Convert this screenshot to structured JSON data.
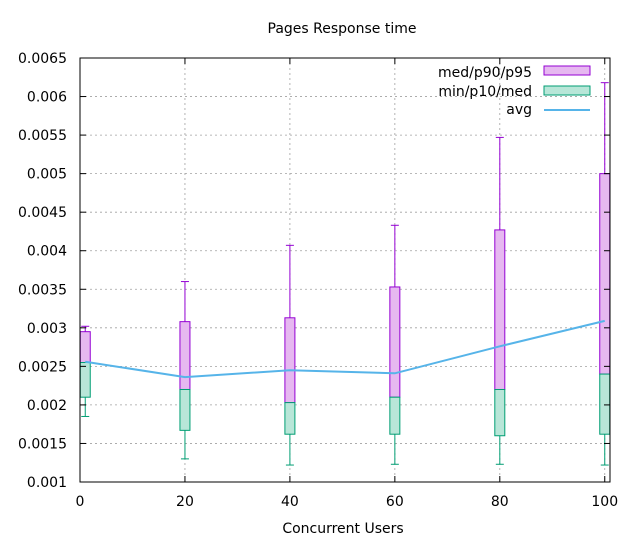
{
  "chart_data": {
    "type": "candlestick-box",
    "title": "Pages Response time",
    "xlabel": "Concurrent Users",
    "ylabel": "",
    "xlim": [
      0,
      101
    ],
    "ylim": [
      0.001,
      0.0065
    ],
    "x_ticks": [
      "0",
      "20",
      "40",
      "60",
      "80",
      "100"
    ],
    "y_ticks": [
      "0.001",
      "0.0015",
      "0.002",
      "0.0025",
      "0.003",
      "0.0035",
      "0.004",
      "0.0045",
      "0.005",
      "0.0055",
      "0.006",
      "0.0065"
    ],
    "grid": true,
    "legend_position": "top-right",
    "legend": [
      "med/p90/p95",
      "min/p10/med",
      "avg"
    ],
    "colors": {
      "upper_fill": "#e6b8f0",
      "upper_stroke": "#9400d3",
      "lower_fill": "#b8e6d8",
      "lower_stroke": "#009e73",
      "avg_line": "#56b4e9"
    },
    "x": [
      1,
      20,
      40,
      60,
      80,
      100
    ],
    "series": [
      {
        "name": "med/p90/p95",
        "med": [
          0.00255,
          0.0022,
          0.00203,
          0.0021,
          0.0022,
          0.0024
        ],
        "p90": [
          0.00295,
          0.00308,
          0.00313,
          0.00353,
          0.00427,
          0.005
        ],
        "p95": [
          0.00302,
          0.0036,
          0.00407,
          0.00433,
          0.00547,
          0.00618
        ]
      },
      {
        "name": "min/p10/med",
        "min": [
          0.00185,
          0.0013,
          0.00122,
          0.00123,
          0.00123,
          0.00122
        ],
        "p10": [
          0.0021,
          0.00167,
          0.00162,
          0.00162,
          0.0016,
          0.00162
        ],
        "med": [
          0.00255,
          0.0022,
          0.00203,
          0.0021,
          0.0022,
          0.0024
        ]
      },
      {
        "name": "avg",
        "values": [
          0.00256,
          0.00236,
          0.00245,
          0.00241,
          0.00276,
          0.00309
        ]
      }
    ]
  }
}
